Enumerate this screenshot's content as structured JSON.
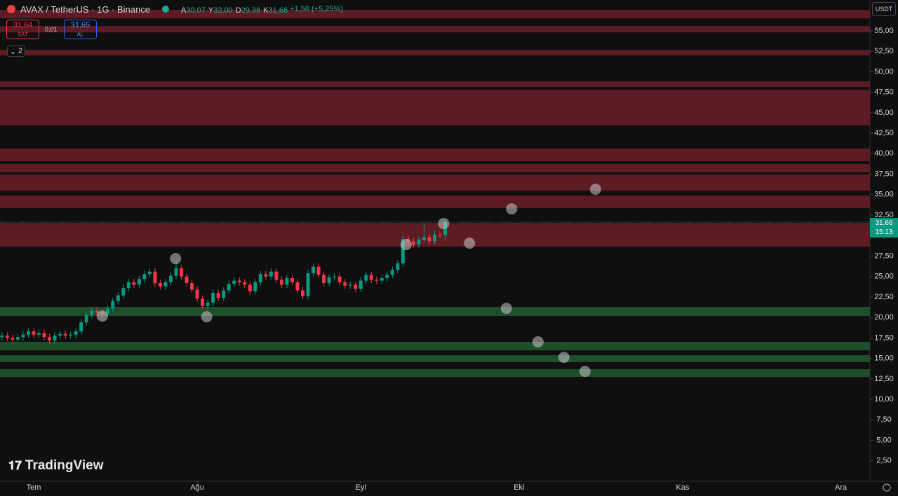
{
  "chart_data": {
    "type": "candlestick",
    "title": "AVAX / TetherUS · 1G · Binance",
    "header_values": [
      {
        "key": "A",
        "value": "30,07"
      },
      {
        "key": "Y",
        "value": "32,00"
      },
      {
        "key": "D",
        "value": "29,38"
      },
      {
        "key": "K",
        "value": "31,66"
      }
    ],
    "change": "+1,58 (+5,25%)",
    "sell_price": "31,64",
    "sell_label": "SAT",
    "spread": "0,01",
    "buy_price": "31,65",
    "buy_label": "AL",
    "indicator_count": 2,
    "currency": "USDT",
    "brand": "TradingView",
    "price_tag": "31,66",
    "countdown": "15:13",
    "last_price": 31.66,
    "up_color": "#089981",
    "down_color": "#f23645",
    "x": [
      -6,
      -5,
      -4,
      -3,
      -2,
      -1,
      0,
      1,
      2,
      3,
      4,
      5,
      6,
      7,
      8,
      9,
      10,
      11,
      12,
      13,
      14,
      15,
      16,
      17,
      18,
      19,
      20,
      21,
      22,
      23,
      24,
      25,
      26,
      27,
      28,
      29,
      30,
      31,
      32,
      33,
      34,
      35,
      36,
      37,
      38,
      39,
      40,
      41,
      42,
      43,
      44,
      45,
      46,
      47,
      48,
      49,
      50,
      51,
      52,
      53,
      54,
      55,
      56,
      57,
      58,
      59,
      60,
      61,
      62,
      63,
      64,
      65,
      66,
      67,
      68,
      69,
      70,
      71,
      72,
      73,
      74,
      75,
      76,
      77,
      78
    ],
    "open": [
      17.6,
      17.8,
      17.5,
      17.3,
      17.6,
      17.9,
      18.3,
      17.9,
      18.1,
      17.6,
      17.2,
      17.8,
      18.0,
      17.8,
      17.9,
      18.3,
      19.4,
      20.3,
      20.8,
      20.6,
      20.4,
      21.1,
      22.0,
      22.7,
      23.6,
      24.3,
      24.0,
      24.7,
      25.3,
      25.6,
      24.2,
      23.8,
      24.3,
      25.1,
      26.0,
      25.0,
      24.2,
      23.4,
      22.3,
      21.4,
      21.8,
      23.0,
      22.4,
      23.3,
      24.1,
      24.5,
      24.3,
      24.0,
      23.2,
      24.3,
      25.3,
      25.0,
      25.6,
      24.6,
      24.0,
      24.8,
      24.3,
      23.3,
      22.6,
      25.4,
      26.2,
      25.2,
      24.2,
      24.9,
      25.0,
      24.3,
      23.9,
      24.0,
      23.5,
      24.5,
      25.2,
      24.6,
      24.5,
      24.8,
      25.2,
      25.8,
      26.6,
      29.6,
      29.3,
      28.9,
      29.5,
      29.8,
      29.3,
      30.1,
      30.07
    ],
    "high": [
      18.2,
      18.2,
      17.9,
      18.0,
      18.3,
      18.7,
      18.7,
      18.5,
      18.5,
      18.0,
      18.2,
      18.4,
      18.4,
      18.3,
      18.7,
      19.8,
      20.7,
      21.2,
      21.2,
      21.0,
      21.5,
      22.4,
      23.1,
      24.0,
      24.7,
      24.7,
      25.1,
      25.7,
      26.0,
      26.0,
      24.6,
      24.7,
      25.5,
      27.0,
      26.4,
      25.4,
      24.6,
      23.8,
      22.7,
      22.2,
      23.4,
      23.4,
      23.7,
      24.5,
      24.9,
      24.9,
      24.7,
      24.4,
      24.7,
      25.7,
      25.7,
      26.0,
      26.0,
      25.0,
      25.2,
      25.2,
      24.7,
      23.7,
      25.8,
      26.6,
      26.6,
      25.6,
      25.3,
      25.4,
      25.4,
      24.7,
      24.4,
      24.4,
      24.9,
      25.6,
      25.6,
      25.0,
      25.2,
      25.6,
      26.2,
      27.0,
      30.0,
      30.0,
      29.7,
      29.9,
      31.5,
      30.2,
      30.5,
      30.5,
      32.0
    ],
    "low": [
      17.2,
      17.1,
      16.9,
      16.9,
      17.2,
      17.5,
      17.5,
      17.5,
      17.2,
      16.8,
      16.8,
      17.4,
      17.4,
      17.4,
      17.5,
      17.9,
      19.0,
      19.9,
      20.2,
      20.0,
      20.0,
      20.7,
      21.6,
      22.3,
      23.2,
      23.6,
      23.6,
      24.3,
      24.9,
      23.8,
      23.4,
      23.4,
      23.9,
      24.7,
      24.6,
      23.8,
      23.0,
      21.9,
      21.0,
      21.0,
      21.4,
      22.0,
      22.0,
      22.9,
      23.7,
      23.9,
      23.6,
      22.8,
      22.8,
      23.9,
      24.6,
      24.6,
      24.2,
      23.6,
      23.6,
      23.9,
      22.9,
      22.2,
      22.2,
      25.0,
      24.8,
      23.8,
      23.8,
      24.5,
      23.9,
      23.5,
      23.5,
      23.1,
      23.1,
      24.1,
      24.2,
      24.1,
      24.1,
      24.4,
      24.8,
      25.4,
      26.2,
      28.9,
      28.5,
      28.5,
      29.1,
      28.9,
      28.9,
      29.7,
      29.38
    ],
    "close": [
      17.8,
      17.5,
      17.3,
      17.6,
      17.9,
      18.3,
      17.9,
      18.1,
      17.6,
      17.2,
      17.8,
      18.0,
      17.8,
      17.9,
      18.3,
      19.4,
      20.3,
      20.8,
      20.6,
      20.4,
      21.1,
      22.0,
      22.7,
      23.6,
      24.3,
      24.0,
      24.7,
      25.3,
      25.6,
      24.2,
      23.8,
      24.3,
      25.1,
      26.0,
      25.0,
      24.2,
      23.4,
      22.3,
      21.4,
      21.8,
      23.0,
      22.4,
      23.3,
      24.1,
      24.5,
      24.3,
      24.0,
      23.2,
      24.3,
      25.3,
      25.0,
      25.6,
      24.6,
      24.0,
      24.8,
      24.3,
      23.3,
      22.6,
      25.4,
      26.2,
      25.2,
      24.2,
      24.9,
      25.0,
      24.3,
      23.9,
      24.0,
      23.5,
      24.5,
      25.2,
      24.6,
      24.5,
      24.8,
      25.2,
      25.8,
      26.6,
      29.6,
      29.3,
      28.9,
      29.5,
      29.8,
      29.3,
      30.1,
      30.07,
      31.66
    ],
    "markers": {
      "color": "#c8c8c8",
      "x": [
        13.0,
        26.9,
        32.8,
        70.6,
        77.7,
        82.6,
        90.6,
        106.5,
        89.6,
        95.6,
        100.5,
        104.5
      ],
      "y": [
        20.18,
        27.19,
        20.09,
        28.9,
        31.47,
        29.07,
        33.26,
        35.66,
        21.12,
        17.02,
        15.13,
        13.42
      ]
    },
    "zones": [
      {
        "low": 56.52,
        "high": 57.55,
        "color": "#5d1c23"
      },
      {
        "low": 54.81,
        "high": 55.58,
        "color": "#5d1c23"
      },
      {
        "low": 51.99,
        "high": 52.67,
        "color": "#5d1c23"
      },
      {
        "low": 48.14,
        "high": 48.82,
        "color": "#5d1c23"
      },
      {
        "low": 43.44,
        "high": 47.8,
        "color": "#5d1c23"
      },
      {
        "low": 39.08,
        "high": 40.62,
        "color": "#5d1c23"
      },
      {
        "low": 37.71,
        "high": 38.74,
        "color": "#5d1c23"
      },
      {
        "low": 35.48,
        "high": 37.45,
        "color": "#5d1c23"
      },
      {
        "low": 33.35,
        "high": 34.89,
        "color": "#5d1c23"
      },
      {
        "low": 28.65,
        "high": 31.55,
        "color": "#5d1c23"
      },
      {
        "low": 20.18,
        "high": 21.29,
        "color": "#1f4f2a"
      },
      {
        "low": 15.99,
        "high": 17.02,
        "color": "#1f4f2a"
      },
      {
        "low": 14.54,
        "high": 15.39,
        "color": "#1f4f2a"
      },
      {
        "low": 12.74,
        "high": 13.68,
        "color": "#1f4f2a"
      }
    ],
    "xlim": [
      -6.38,
      158.51
    ],
    "xticks": [
      {
        "value": 0,
        "label": "Tem"
      },
      {
        "value": 31,
        "label": "Ağu"
      },
      {
        "value": 62,
        "label": "Eyl"
      },
      {
        "value": 92,
        "label": "Eki"
      },
      {
        "value": 123,
        "label": "Kas"
      },
      {
        "value": 153,
        "label": "Ara"
      }
    ],
    "ylim": [
      0,
      58.76
    ],
    "yticks": [
      {
        "value": 2.5,
        "label": "2,50"
      },
      {
        "value": 5,
        "label": "5,00"
      },
      {
        "value": 7.5,
        "label": "7,50"
      },
      {
        "value": 10,
        "label": "10,00"
      },
      {
        "value": 12.5,
        "label": "12,50"
      },
      {
        "value": 15,
        "label": "15,00"
      },
      {
        "value": 17.5,
        "label": "17,50"
      },
      {
        "value": 20,
        "label": "20,00"
      },
      {
        "value": 22.5,
        "label": "22,50"
      },
      {
        "value": 25,
        "label": "25,00"
      },
      {
        "value": 27.5,
        "label": "27,50"
      },
      {
        "value": 30,
        "label": "30,00"
      },
      {
        "value": 32.5,
        "label": "32,50"
      },
      {
        "value": 35,
        "label": "35,00"
      },
      {
        "value": 37.5,
        "label": "37,50"
      },
      {
        "value": 40,
        "label": "40,00"
      },
      {
        "value": 42.5,
        "label": "42,50"
      },
      {
        "value": 45,
        "label": "45,00"
      },
      {
        "value": 47.5,
        "label": "47,50"
      },
      {
        "value": 50,
        "label": "50,00"
      },
      {
        "value": 52.5,
        "label": "52,50"
      },
      {
        "value": 55,
        "label": "55,00"
      }
    ],
    "grid": false
  }
}
